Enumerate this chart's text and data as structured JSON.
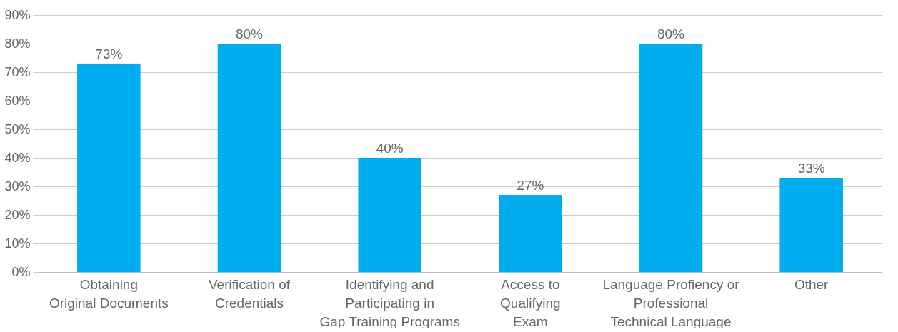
{
  "chart_data": {
    "type": "bar",
    "categories": [
      "Obtaining\nOriginal Documents",
      "Verification of\nCredentials",
      "Identifying and\nParticipating in\nGap Training Programs",
      "Access to\nQualifying\nExam",
      "Language Profiency or\nProfessional\nTechnical Language",
      "Other"
    ],
    "values": [
      73,
      80,
      40,
      27,
      80,
      33
    ],
    "value_labels": [
      "73%",
      "80%",
      "40%",
      "27%",
      "80%",
      "33%"
    ],
    "color": "#00aeef",
    "ylim": [
      0,
      90
    ],
    "yticks": [
      {
        "value": 0,
        "label": "0%"
      },
      {
        "value": 10,
        "label": "10%"
      },
      {
        "value": 20,
        "label": "20%"
      },
      {
        "value": 30,
        "label": "30%"
      },
      {
        "value": 40,
        "label": "40%"
      },
      {
        "value": 50,
        "label": "50%"
      },
      {
        "value": 60,
        "label": "60%"
      },
      {
        "value": 70,
        "label": "70%"
      },
      {
        "value": 80,
        "label": "80%"
      },
      {
        "value": 90,
        "label": "90%"
      }
    ],
    "grid": "y"
  }
}
